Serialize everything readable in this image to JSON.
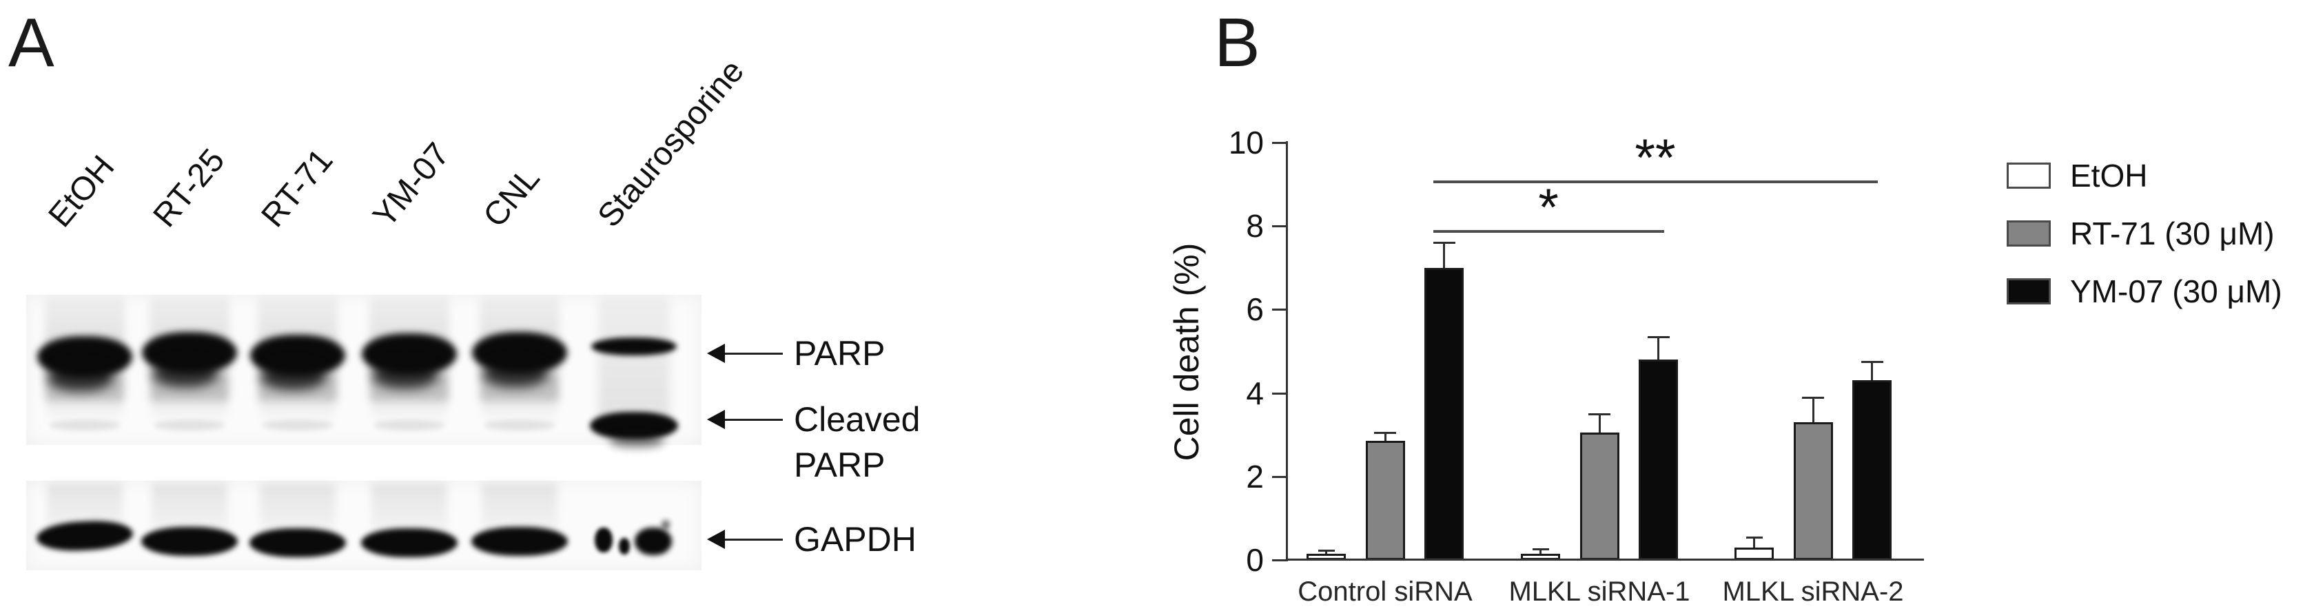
{
  "panelA": {
    "label": "A",
    "lanes": [
      "EtOH",
      "RT-25",
      "RT-71",
      "YM-07",
      "CNL",
      "Staurosporine"
    ],
    "markers": [
      {
        "label": "PARP"
      },
      {
        "label": "Cleaved\nPARP"
      },
      {
        "label": "GAPDH"
      }
    ],
    "blot_rows": [
      {
        "name": "PARP",
        "band_intensity": [
          1,
          1,
          1,
          1,
          1,
          0.6
        ]
      },
      {
        "name": "Cleaved PARP",
        "band_intensity": [
          0,
          0,
          0,
          0,
          0,
          1
        ]
      },
      {
        "name": "GAPDH",
        "band_intensity": [
          1,
          1,
          1,
          1,
          1,
          0.85
        ]
      }
    ]
  },
  "panelB": {
    "label": "B"
  },
  "chart_data": {
    "type": "bar",
    "title": "",
    "xlabel": "",
    "ylabel": "Cell death (%)",
    "ylim": [
      0,
      10
    ],
    "yticks": [
      0,
      2,
      4,
      6,
      8,
      10
    ],
    "grid": false,
    "legend_position": "right",
    "categories": [
      "Control siRNA",
      "MLKL siRNA-1",
      "MLKL siRNA-2"
    ],
    "series": [
      {
        "name": "EtOH",
        "color": "#ffffff",
        "values": [
          0.15,
          0.15,
          0.3
        ],
        "errors": [
          0.08,
          0.12,
          0.25
        ]
      },
      {
        "name": "RT-71 (30 μM)",
        "color": "#848484",
        "values": [
          2.85,
          3.05,
          3.3
        ],
        "errors": [
          0.2,
          0.45,
          0.6
        ]
      },
      {
        "name": "YM-07 (30 μM)",
        "color": "#0b0b0b",
        "values": [
          7.0,
          4.8,
          4.3
        ],
        "errors": [
          0.6,
          0.55,
          0.45
        ]
      }
    ],
    "significance": [
      {
        "label": "*",
        "from_category": 0,
        "to_category": 1,
        "series": "YM-07 (30 μM)",
        "line_y": 7.9
      },
      {
        "label": "**",
        "from_category": 0,
        "to_category": 2,
        "series": "YM-07 (30 μM)",
        "line_y": 9.1
      }
    ]
  }
}
